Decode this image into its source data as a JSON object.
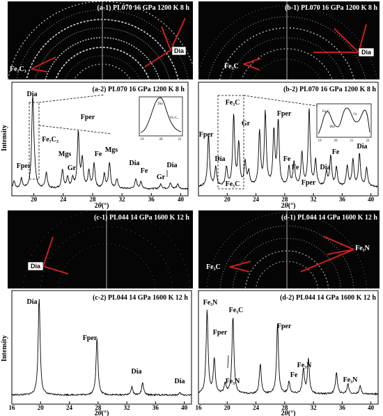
{
  "ylabel": "Intensity",
  "xlabel_prefix": "2",
  "xlabel_theta": "θ",
  "xlabel_unit": "(°)",
  "colors": {
    "trace": "#000000",
    "image_bg": "#050505",
    "ring": "#d8d8d8",
    "arrow": "#e02020"
  },
  "images": [
    {
      "id": "a1",
      "title": "(a-1) PL070 16 GPa 1200 K 8 h",
      "labels": [
        {
          "text": "Dia",
          "boxed": true
        },
        {
          "text": "Fe₇C₃",
          "boxed": false
        }
      ]
    },
    {
      "id": "b1",
      "title": "(b-1) PL070 16 GPa 1200 K 8 h",
      "labels": [
        {
          "text": "Dia",
          "boxed": true
        },
        {
          "text": "Fe₃C",
          "boxed": false
        }
      ]
    },
    {
      "id": "c1",
      "title": "(c-1) PL044 14 GPa 1600 K 12 h",
      "labels": [
        {
          "text": "Dia",
          "boxed": true
        }
      ]
    },
    {
      "id": "d1",
      "title": "(d-1) PL044 14 GPa 1600 K 12 h",
      "labels": [
        {
          "text": "Fe₃N",
          "boxed": false
        },
        {
          "text": "Fe₃C",
          "boxed": false
        }
      ]
    }
  ],
  "chart_data": [
    {
      "id": "a2",
      "type": "line",
      "title": "(a-2) PL070  16 GPa 1200 K 8 h",
      "xlim": [
        17,
        41
      ],
      "ylim": [
        0,
        1
      ],
      "xticks": [
        20,
        24,
        28,
        32,
        36,
        40
      ],
      "peaks": [
        [
          17.3,
          0.08
        ],
        [
          18.3,
          0.1
        ],
        [
          19.85,
          1.0
        ],
        [
          20.1,
          0.12
        ],
        [
          21.7,
          0.17
        ],
        [
          23.9,
          0.2
        ],
        [
          24.6,
          0.12
        ],
        [
          25.3,
          0.1
        ],
        [
          26.05,
          0.59
        ],
        [
          26.6,
          0.3
        ],
        [
          27.5,
          0.18
        ],
        [
          28.2,
          0.26
        ],
        [
          29.6,
          0.15
        ],
        [
          30.3,
          0.27
        ],
        [
          31.3,
          0.1
        ],
        [
          33.9,
          0.1
        ],
        [
          34.6,
          0.07
        ],
        [
          37.3,
          0.05
        ],
        [
          38.6,
          0.06
        ],
        [
          39.6,
          0.05
        ]
      ],
      "baseline": 0.03,
      "annotations": [
        "Dia",
        "Fe₇C₃",
        "Mgs",
        "Gr",
        "Fper",
        "Fe",
        "Mgs",
        "Dia",
        "Fe",
        "Gr",
        "Dia",
        "Fper"
      ],
      "inset": {
        "labels": [
          "Dia",
          "Fe₇C₃"
        ],
        "ticks": [
          "19",
          "20",
          "21"
        ]
      }
    },
    {
      "id": "b2",
      "type": "line",
      "title": "(b-2) PL070  16 GPa 1200 K 8 h",
      "xlim": [
        16,
        41
      ],
      "ylim": [
        0,
        1
      ],
      "xticks": [
        20,
        24,
        28,
        32,
        36,
        40
      ],
      "peaks": [
        [
          17.4,
          0.55
        ],
        [
          18.4,
          0.2
        ],
        [
          19.9,
          0.2
        ],
        [
          20.9,
          0.75
        ],
        [
          21.6,
          0.45
        ],
        [
          22.5,
          0.25
        ],
        [
          23.0,
          0.15
        ],
        [
          24.5,
          0.58
        ],
        [
          25.3,
          0.78
        ],
        [
          26.5,
          0.58
        ],
        [
          27.1,
          0.68
        ],
        [
          28.6,
          0.2
        ],
        [
          29.3,
          0.25
        ],
        [
          30.4,
          0.35
        ],
        [
          31.4,
          0.82
        ],
        [
          32.3,
          0.28
        ],
        [
          33.8,
          0.15
        ],
        [
          34.4,
          0.32
        ],
        [
          35.2,
          0.2
        ],
        [
          36.7,
          0.22
        ],
        [
          37.5,
          0.28
        ],
        [
          38.4,
          0.35
        ],
        [
          39.4,
          0.2
        ]
      ],
      "baseline": 0.05,
      "annotations": [
        "Fper",
        "Fe₃C",
        "Gr",
        "Fper",
        "Dia",
        "Fe₅C",
        "Fe",
        "Fe",
        "Fper",
        "Dia",
        "Fe",
        "Dia"
      ],
      "inset": {
        "labels": [
          "Fe₃C",
          "Gr",
          "Dia"
        ],
        "ticks": [
          "19",
          "20",
          "21",
          "22"
        ]
      }
    },
    {
      "id": "c2",
      "type": "line",
      "title": "(c-2) PL044 14 GPa 1600 K 12 h",
      "xlim": [
        16,
        41
      ],
      "ylim": [
        0,
        1
      ],
      "xticks": [
        16,
        20,
        24,
        28,
        32,
        36,
        40
      ],
      "peaks": [
        [
          19.8,
          1.0
        ],
        [
          27.85,
          0.58
        ],
        [
          32.7,
          0.08
        ],
        [
          34.2,
          0.12
        ],
        [
          39.4,
          0.02
        ]
      ],
      "baseline": 0.05,
      "annotations": [
        "Dia",
        "Fper",
        "Dia",
        "Dia"
      ]
    },
    {
      "id": "d2",
      "type": "line",
      "title": "(d-2) PL044 14 GPa 1600 K 12 h",
      "xlim": [
        16,
        41
      ],
      "ylim": [
        0,
        1
      ],
      "xticks": [
        16,
        20,
        24,
        28,
        32,
        36,
        40
      ],
      "peaks": [
        [
          17.2,
          0.85
        ],
        [
          18.2,
          0.35
        ],
        [
          19.7,
          0.1
        ],
        [
          20.8,
          0.78
        ],
        [
          24.6,
          0.3
        ],
        [
          27.0,
          0.7
        ],
        [
          28.6,
          0.12
        ],
        [
          30.6,
          0.25
        ],
        [
          31.3,
          0.35
        ],
        [
          35.2,
          0.22
        ],
        [
          36.8,
          0.1
        ],
        [
          38.5,
          0.08
        ]
      ],
      "baseline": 0.06,
      "annotations": [
        "Fe₃N",
        "Fe₃C",
        "Fper",
        "Fe₃N",
        "Fper",
        "Fe",
        "Fe₃N",
        "Fe₃N"
      ]
    }
  ]
}
